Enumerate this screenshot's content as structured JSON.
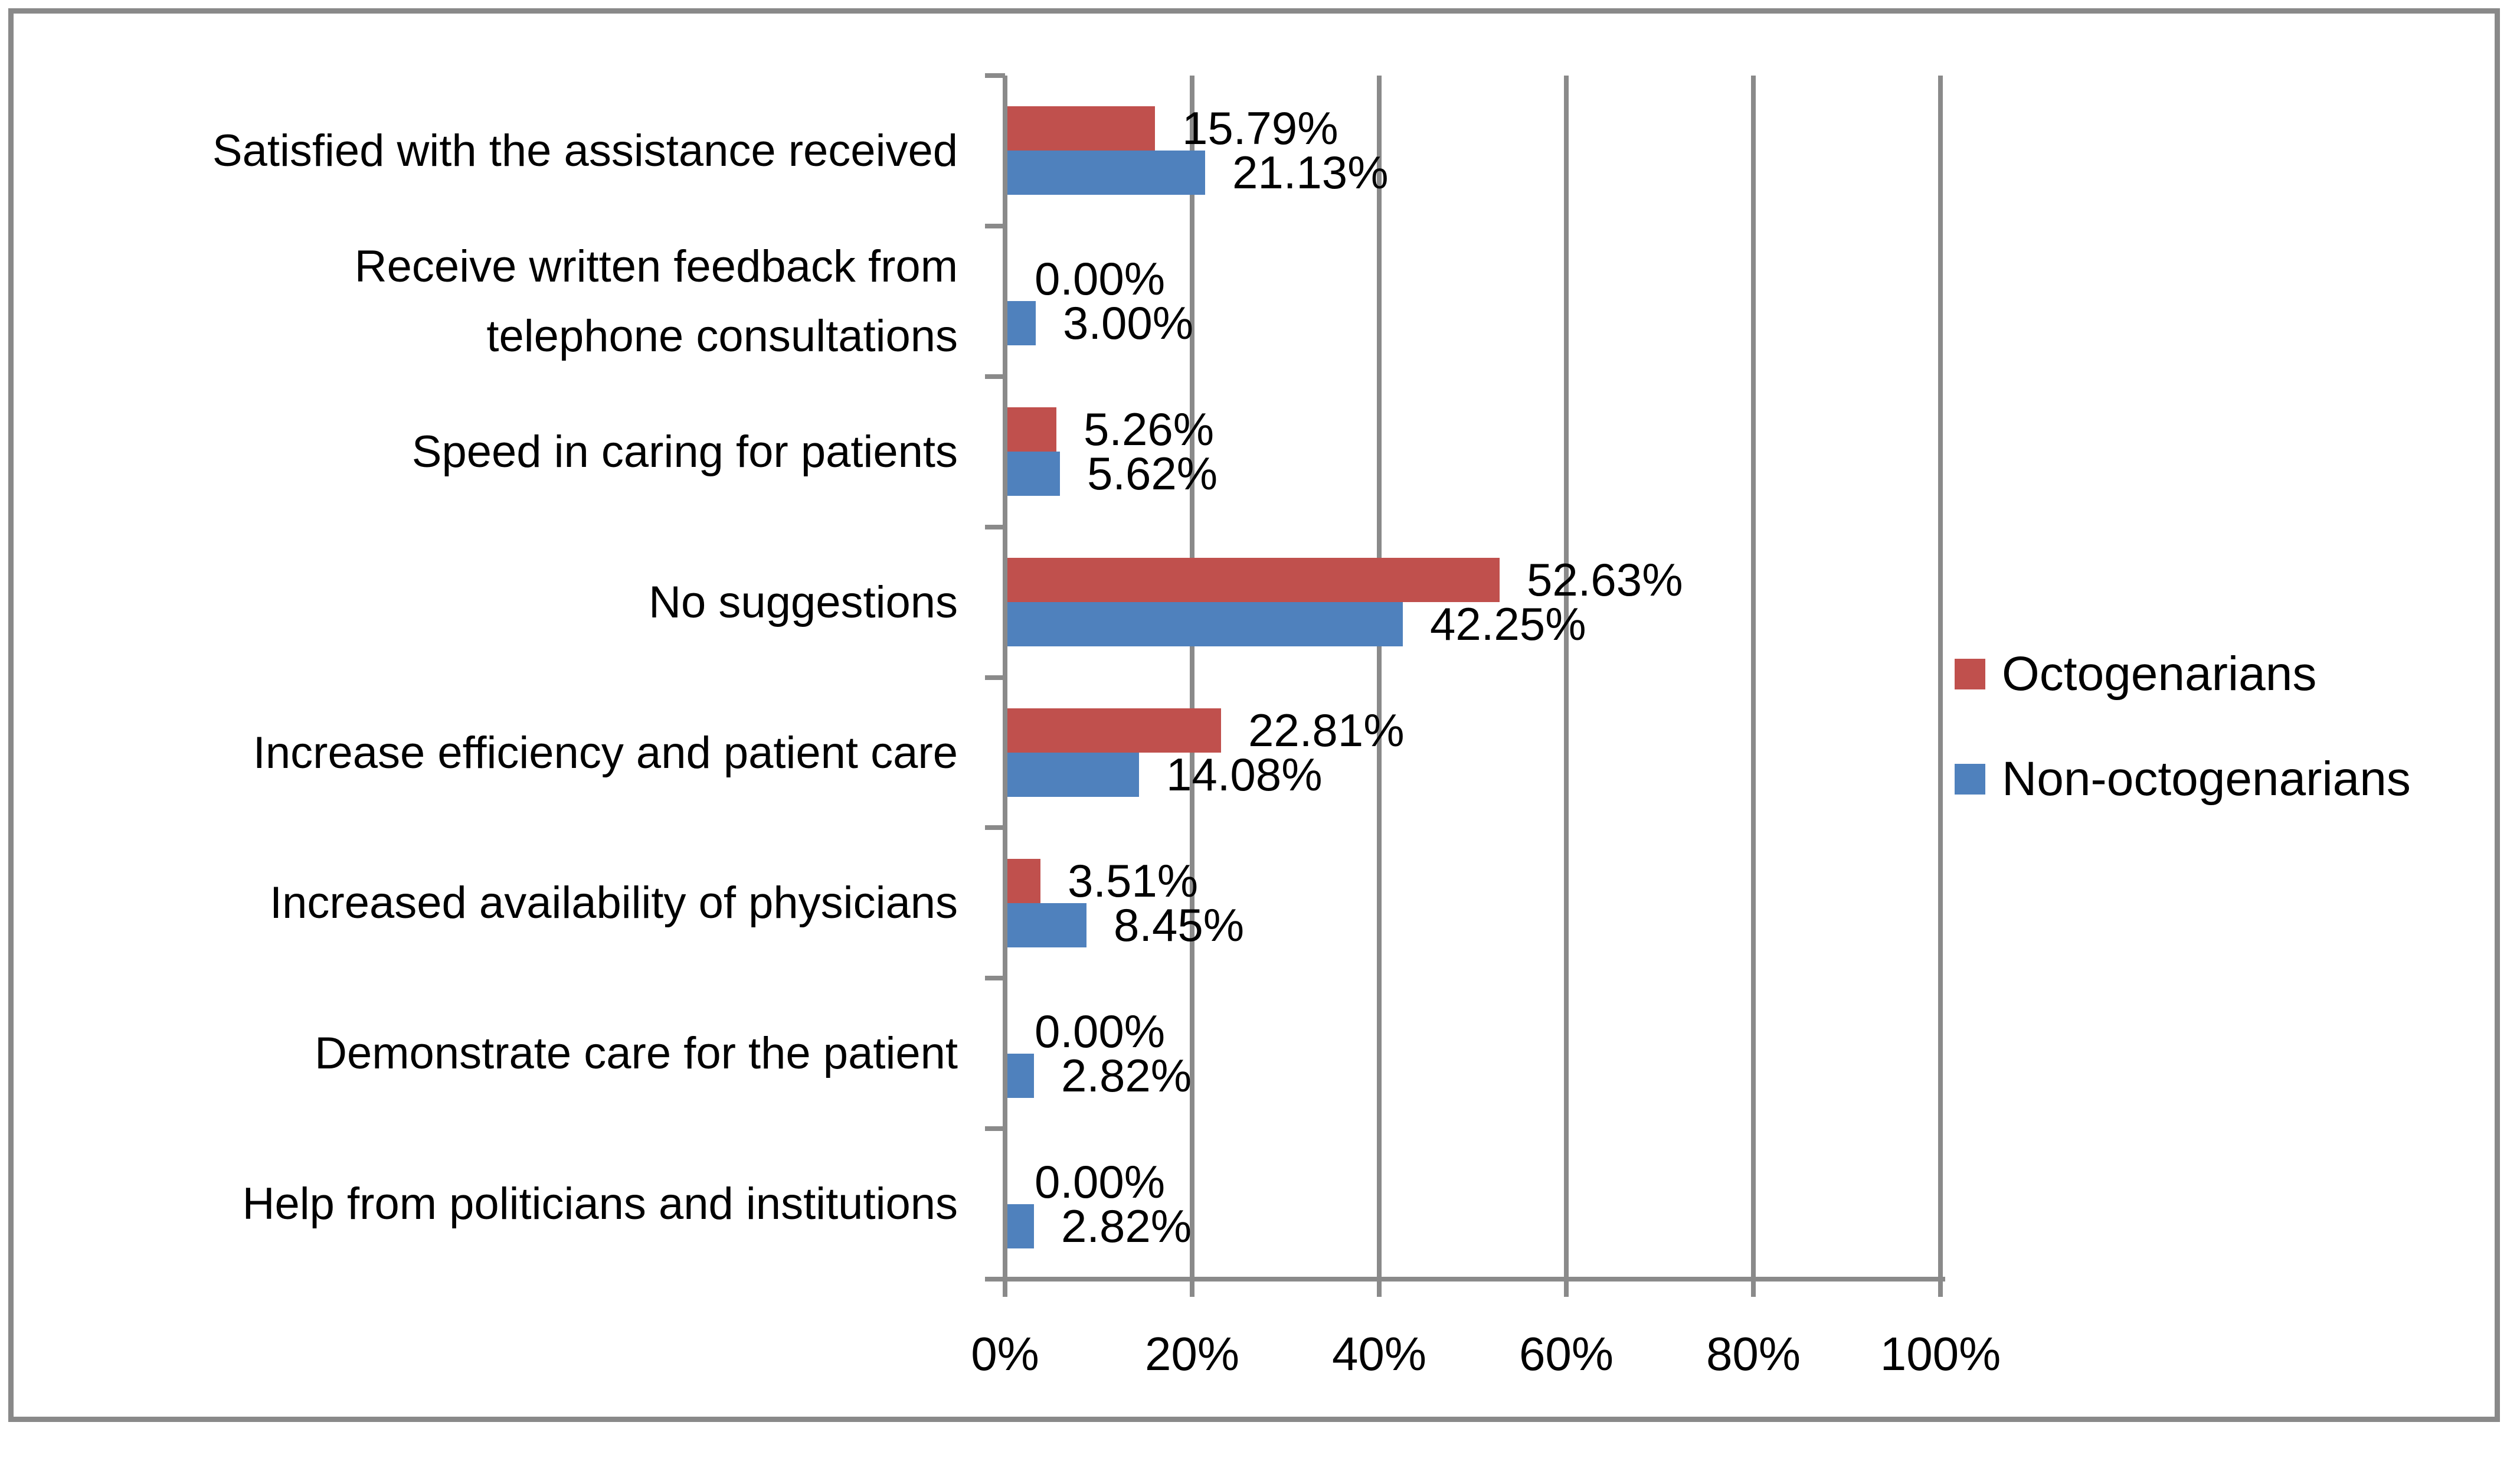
{
  "figure": {
    "background_color": "#ffffff",
    "border_color": "#898989",
    "grid_color": "#8a8a8a",
    "text_color": "#000000"
  },
  "chart_data": {
    "type": "bar",
    "orientation": "horizontal",
    "title": "",
    "xlabel": "",
    "ylabel": "",
    "xlim": [
      0,
      100
    ],
    "grid": true,
    "legend_position": "right",
    "categories": [
      "Satisfied with the assistance received",
      "Receive written feedback from telephone consultations",
      "Speed in caring for patients",
      "No suggestions",
      "Increase efficiency and patient care",
      "Increased availability of physicians",
      "Demonstrate care for the patient",
      "Help from politicians and institutions"
    ],
    "category_display_lines": [
      [
        "Satisfied with the assistance received"
      ],
      [
        "Receive written feedback from",
        "telephone consultations"
      ],
      [
        "Speed in caring for patients"
      ],
      [
        "No suggestions"
      ],
      [
        "Increase efficiency and patient care"
      ],
      [
        "Increased availability of physicians"
      ],
      [
        "Demonstrate care for the patient"
      ],
      [
        "Help from politicians and institutions"
      ]
    ],
    "series": [
      {
        "name": "Octogenarians",
        "color": "#c0504d",
        "values": [
          15.79,
          0.0,
          5.26,
          52.63,
          22.81,
          3.51,
          0.0,
          0.0
        ],
        "labels": [
          "15.79%",
          "0.00%",
          "5.26%",
          "52.63%",
          "22.81%",
          "3.51%",
          "0.00%",
          "0.00%"
        ]
      },
      {
        "name": "Non-octogenarians",
        "color": "#4f81bd",
        "values": [
          21.13,
          3.0,
          5.62,
          42.25,
          14.08,
          8.45,
          2.82,
          2.82
        ],
        "labels": [
          "21.13%",
          "3.00%",
          "5.62%",
          "42.25%",
          "14.08%",
          "8.45%",
          "2.82%",
          "2.82%"
        ]
      }
    ],
    "x_axis": {
      "tick_labels": [
        "0%",
        "20%",
        "40%",
        "60%",
        "80%",
        "100%"
      ],
      "tick_values": [
        0,
        20,
        40,
        60,
        80,
        100
      ]
    }
  }
}
